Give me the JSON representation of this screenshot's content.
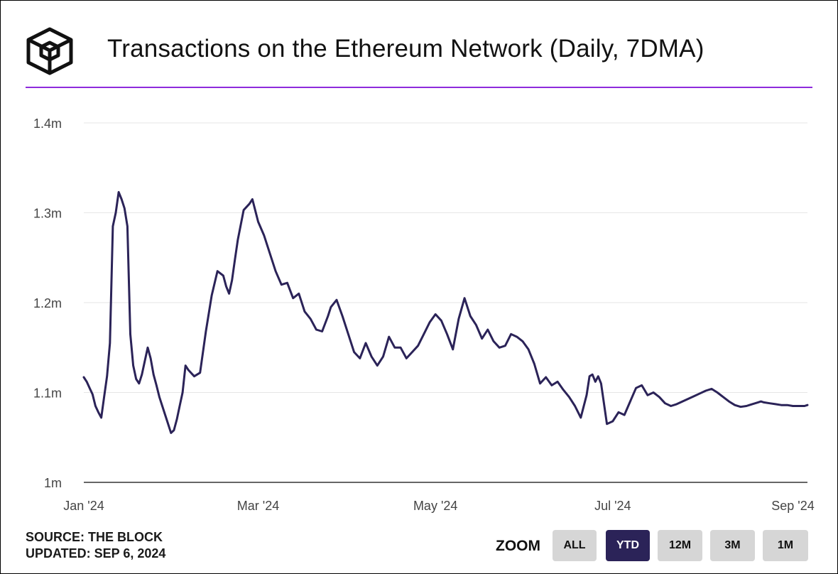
{
  "title": "Transactions on the Ethereum Network (Daily, 7DMA)",
  "logo_icon": "the-block-cube-logo",
  "source": "SOURCE: THE BLOCK",
  "updated": "UPDATED: SEP 6, 2024",
  "zoom": {
    "label": "ZOOM",
    "buttons": [
      "ALL",
      "YTD",
      "12M",
      "3M",
      "1M"
    ],
    "selected": "YTD"
  },
  "colors": {
    "line": "#2b2358",
    "accent_rule": "#8e2bdc",
    "grid": "#e6e6e6",
    "active_button": "#2b2358",
    "button": "#d6d6d6"
  },
  "chart_data": {
    "type": "line",
    "title": "Transactions on the Ethereum Network (Daily, 7DMA)",
    "xlabel": "",
    "ylabel": "",
    "y_ticks": [
      1.0,
      1.1,
      1.2,
      1.3,
      1.4
    ],
    "y_tick_labels": [
      "1m",
      "1.1m",
      "1.2m",
      "1.3m",
      "1.4m"
    ],
    "ylim": [
      1.0,
      1.4
    ],
    "unit": "m",
    "x_ticks": [
      "2024-01-01",
      "2024-03-01",
      "2024-05-01",
      "2024-07-01",
      "2024-09-01"
    ],
    "x_tick_labels": [
      "Jan '24",
      "Mar '24",
      "May '24",
      "Jul '24",
      "Sep '24"
    ],
    "xlim": [
      "2024-01-01",
      "2024-09-06"
    ],
    "grid": true,
    "legend": "none",
    "series": [
      {
        "x": [
          "2024-01-01",
          "2024-01-02",
          "2024-01-03",
          "2024-01-04",
          "2024-01-05",
          "2024-01-06",
          "2024-01-07",
          "2024-01-08",
          "2024-01-09",
          "2024-01-10",
          "2024-01-11",
          "2024-01-12",
          "2024-01-13",
          "2024-01-14",
          "2024-01-15",
          "2024-01-16",
          "2024-01-17",
          "2024-01-18",
          "2024-01-19",
          "2024-01-20",
          "2024-01-21",
          "2024-01-22",
          "2024-01-23",
          "2024-01-24",
          "2024-01-25",
          "2024-01-26",
          "2024-01-27",
          "2024-01-28",
          "2024-01-29",
          "2024-01-31",
          "2024-02-01",
          "2024-02-02",
          "2024-02-03",
          "2024-02-04",
          "2024-02-05",
          "2024-02-06",
          "2024-02-08",
          "2024-02-10",
          "2024-02-12",
          "2024-02-14",
          "2024-02-16",
          "2024-02-18",
          "2024-02-19",
          "2024-02-20",
          "2024-02-21",
          "2024-02-22",
          "2024-02-23",
          "2024-02-25",
          "2024-02-27",
          "2024-02-28",
          "2024-03-01",
          "2024-03-03",
          "2024-03-05",
          "2024-03-07",
          "2024-03-09",
          "2024-03-11",
          "2024-03-13",
          "2024-03-15",
          "2024-03-17",
          "2024-03-19",
          "2024-03-21",
          "2024-03-23",
          "2024-03-25",
          "2024-03-26",
          "2024-03-28",
          "2024-03-30",
          "2024-04-01",
          "2024-04-03",
          "2024-04-05",
          "2024-04-07",
          "2024-04-09",
          "2024-04-11",
          "2024-04-13",
          "2024-04-15",
          "2024-04-17",
          "2024-04-19",
          "2024-04-21",
          "2024-04-23",
          "2024-04-25",
          "2024-04-27",
          "2024-04-29",
          "2024-05-01",
          "2024-05-03",
          "2024-05-05",
          "2024-05-07",
          "2024-05-09",
          "2024-05-11",
          "2024-05-13",
          "2024-05-15",
          "2024-05-17",
          "2024-05-19",
          "2024-05-21",
          "2024-05-23",
          "2024-05-25",
          "2024-05-27",
          "2024-05-29",
          "2024-05-31",
          "2024-06-02",
          "2024-06-04",
          "2024-06-06",
          "2024-06-08",
          "2024-06-10",
          "2024-06-12",
          "2024-06-14",
          "2024-06-16",
          "2024-06-18",
          "2024-06-20",
          "2024-06-22",
          "2024-06-23",
          "2024-06-24",
          "2024-06-25",
          "2024-06-26",
          "2024-06-27",
          "2024-06-29",
          "2024-07-01",
          "2024-07-03",
          "2024-07-05",
          "2024-07-07",
          "2024-07-09",
          "2024-07-11",
          "2024-07-13",
          "2024-07-15",
          "2024-07-17",
          "2024-07-19",
          "2024-07-21",
          "2024-07-23",
          "2024-07-25",
          "2024-07-27",
          "2024-07-29",
          "2024-07-31",
          "2024-08-02",
          "2024-08-04",
          "2024-08-06",
          "2024-08-08",
          "2024-08-10",
          "2024-08-12",
          "2024-08-14",
          "2024-08-16",
          "2024-08-17",
          "2024-08-18",
          "2024-08-19",
          "2024-08-20",
          "2024-08-21",
          "2024-08-22",
          "2024-08-24",
          "2024-08-26",
          "2024-08-28",
          "2024-08-30",
          "2024-09-01",
          "2024-09-03",
          "2024-09-05",
          "2024-09-06"
        ],
        "y": [
          1.117,
          1.112,
          1.105,
          1.098,
          1.085,
          1.078,
          1.072,
          1.095,
          1.118,
          1.155,
          1.285,
          1.3,
          1.323,
          1.315,
          1.305,
          1.285,
          1.165,
          1.13,
          1.115,
          1.11,
          1.12,
          1.135,
          1.15,
          1.138,
          1.12,
          1.108,
          1.095,
          1.085,
          1.075,
          1.055,
          1.058,
          1.07,
          1.085,
          1.1,
          1.13,
          1.125,
          1.118,
          1.122,
          1.168,
          1.208,
          1.235,
          1.23,
          1.218,
          1.21,
          1.225,
          1.248,
          1.27,
          1.303,
          1.31,
          1.315,
          1.29,
          1.275,
          1.255,
          1.235,
          1.22,
          1.222,
          1.205,
          1.21,
          1.19,
          1.182,
          1.17,
          1.168,
          1.185,
          1.195,
          1.203,
          1.185,
          1.165,
          1.145,
          1.138,
          1.155,
          1.14,
          1.13,
          1.14,
          1.162,
          1.15,
          1.15,
          1.138,
          1.145,
          1.152,
          1.165,
          1.178,
          1.187,
          1.18,
          1.165,
          1.148,
          1.182,
          1.205,
          1.185,
          1.175,
          1.16,
          1.17,
          1.157,
          1.15,
          1.152,
          1.165,
          1.162,
          1.157,
          1.148,
          1.132,
          1.11,
          1.117,
          1.108,
          1.112,
          1.103,
          1.095,
          1.085,
          1.072,
          1.097,
          1.118,
          1.12,
          1.112,
          1.118,
          1.11,
          1.065,
          1.068,
          1.078,
          1.075,
          1.09,
          1.105,
          1.108,
          1.097,
          1.1,
          1.095,
          1.088,
          1.085,
          1.087,
          1.09,
          1.093,
          1.096,
          1.099,
          1.102,
          1.104,
          1.1,
          1.095,
          1.09,
          1.086,
          1.084,
          1.085,
          1.086,
          1.087,
          1.088,
          1.089,
          1.09,
          1.089,
          1.088,
          1.087,
          1.086,
          1.086,
          1.085,
          1.085,
          1.085,
          1.086
        ]
      }
    ]
  }
}
